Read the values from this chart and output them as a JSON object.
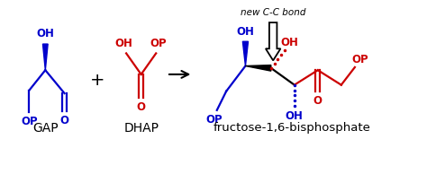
{
  "background": "#ffffff",
  "blue": "#0000cc",
  "red": "#cc0000",
  "black": "#000000",
  "title_italic": "new C-C bond",
  "label_gap": "GAP",
  "label_dhap": "DHAP",
  "label_product": "fructose-1,6-bisphosphate",
  "figsize": [
    4.74,
    1.94
  ],
  "dpi": 100
}
